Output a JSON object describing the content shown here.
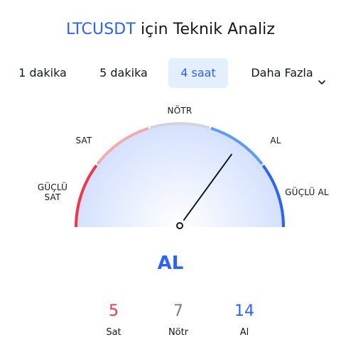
{
  "header": {
    "symbol": "LTCUSDT",
    "title_rest": " için Teknik Analiz"
  },
  "tabs": [
    {
      "label": "1 dakika",
      "active": false
    },
    {
      "label": "5 dakika",
      "active": false
    },
    {
      "label": "4 saat",
      "active": true
    },
    {
      "label": "Daha Fazla",
      "active": false,
      "icon": "chevron-down-icon"
    }
  ],
  "gauge": {
    "labels": {
      "strong_sell_line1": "GÜÇLÜ",
      "strong_sell_line2": "SAT",
      "sell": "SAT",
      "neutral": "NÖTR",
      "buy": "AL",
      "strong_buy": "GÜÇLÜ AL"
    },
    "needle_value": 0.7,
    "colors": {
      "strong_sell": "#f23645",
      "sell": "#f7a8ac",
      "neutral": "#d1d4dc",
      "buy": "#5b9cf6",
      "strong_buy": "#2962ff",
      "needle": "#131722"
    }
  },
  "summary": {
    "signal": "AL",
    "counts": [
      {
        "value": "5",
        "label": "Sat",
        "color": "#f23645"
      },
      {
        "value": "7",
        "label": "Nötr",
        "color": "#787b86"
      },
      {
        "value": "14",
        "label": "Al",
        "color": "#2962ff"
      }
    ]
  }
}
